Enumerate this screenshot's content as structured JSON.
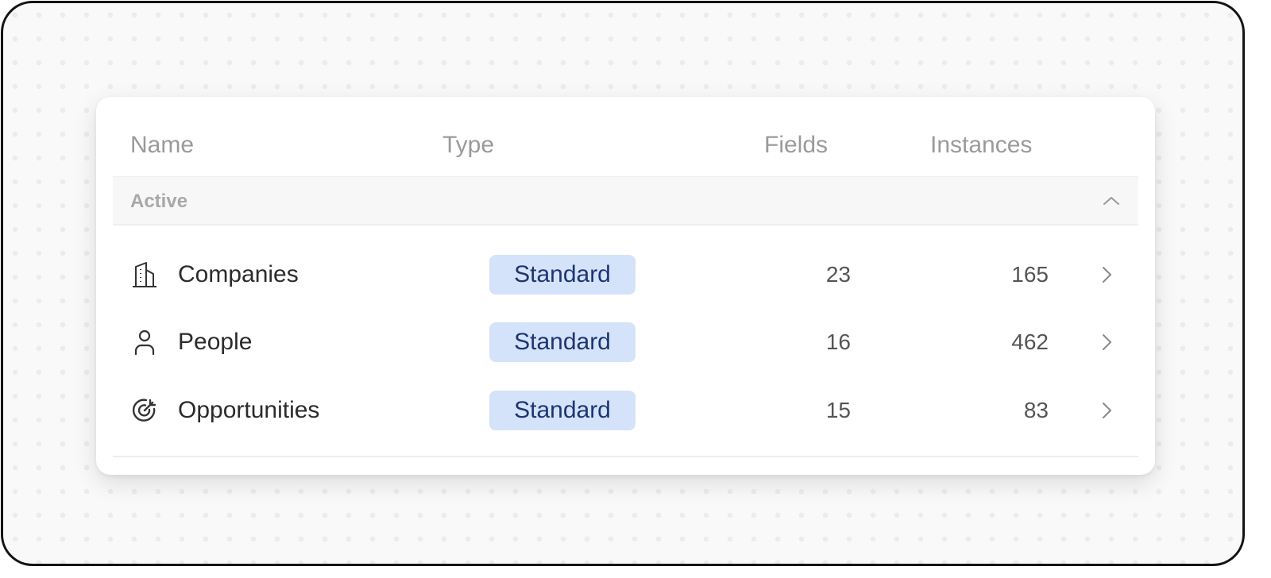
{
  "header": {
    "name": "Name",
    "type": "Type",
    "fields": "Fields",
    "instances": "Instances"
  },
  "group": {
    "label": "Active",
    "expanded": true
  },
  "rows": [
    {
      "icon": "building-icon",
      "name": "Companies",
      "type": "Standard",
      "fields": "23",
      "instances": "165"
    },
    {
      "icon": "user-icon",
      "name": "People",
      "type": "Standard",
      "fields": "16",
      "instances": "462"
    },
    {
      "icon": "target-arrow-icon",
      "name": "Opportunities",
      "type": "Standard",
      "fields": "15",
      "instances": "83"
    }
  ],
  "colors": {
    "badge_bg": "#d5e3fa",
    "badge_text": "#1d3670"
  }
}
